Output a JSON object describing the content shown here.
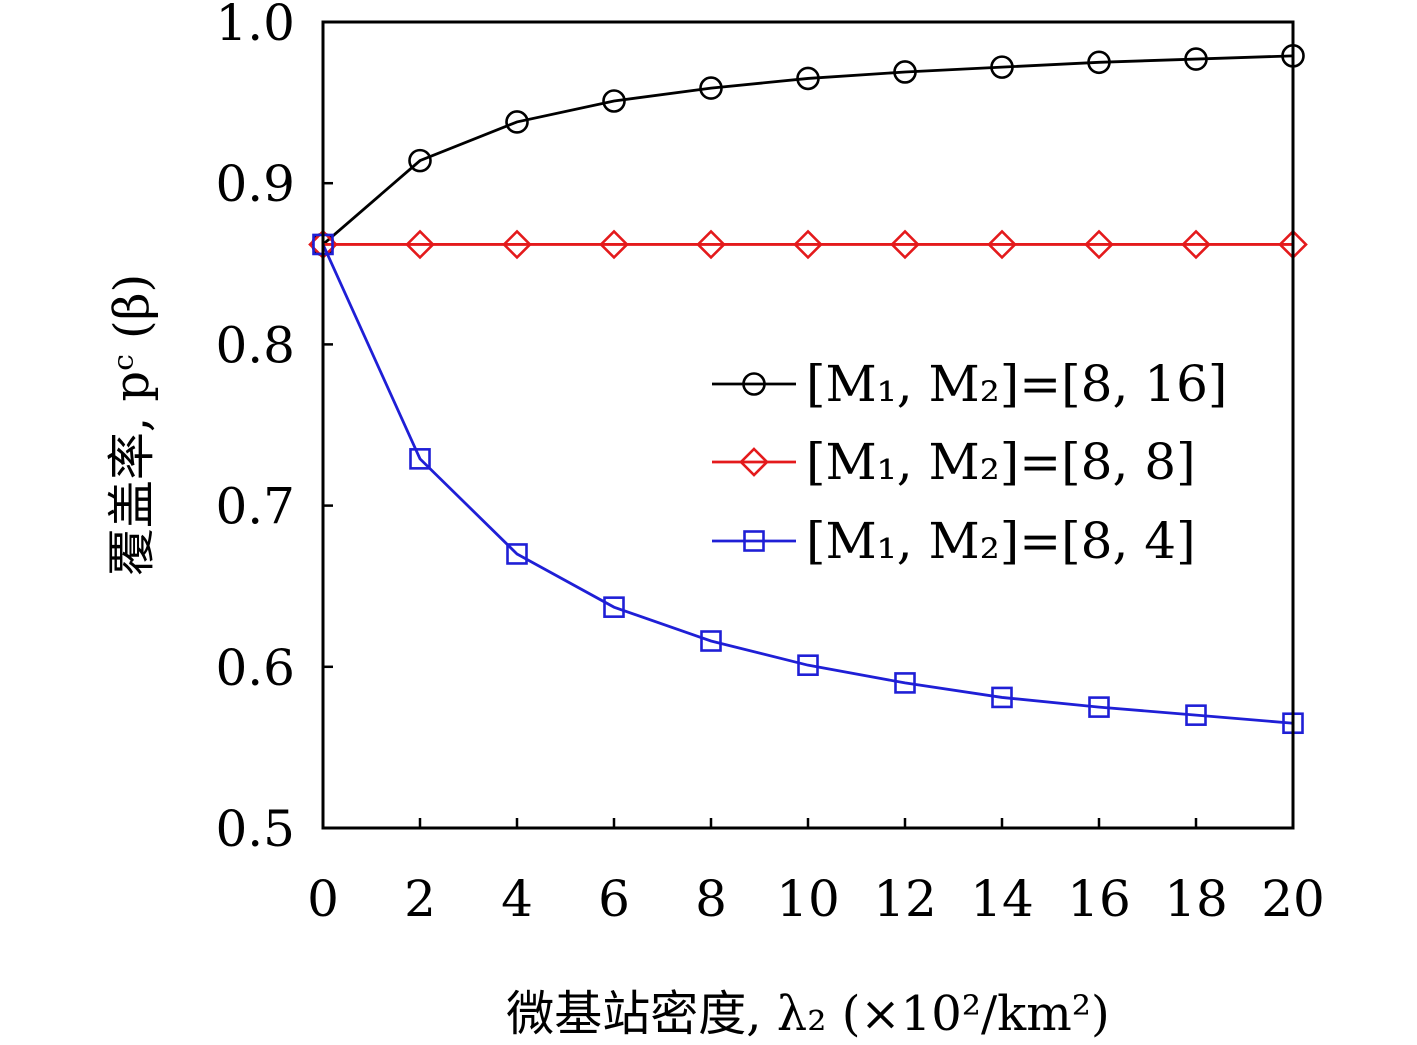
{
  "chart_data": {
    "type": "line",
    "title": "",
    "xlabel": "微基站密度, λ₂ (×10²/km²)",
    "ylabel": "覆盖率, pᶜ (β)",
    "xlim": [
      0,
      20
    ],
    "ylim": [
      0.5,
      1.0
    ],
    "x": [
      0,
      2,
      4,
      6,
      8,
      10,
      12,
      14,
      16,
      18,
      20
    ],
    "x_ticks": [
      "0",
      "2",
      "4",
      "6",
      "8",
      "10",
      "12",
      "14",
      "16",
      "18",
      "20"
    ],
    "y_ticks": [
      {
        "value": 0.5,
        "label": "0.5"
      },
      {
        "value": 0.6,
        "label": "0.6"
      },
      {
        "value": 0.7,
        "label": "0.7"
      },
      {
        "value": 0.8,
        "label": "0.8"
      },
      {
        "value": 0.9,
        "label": "0.9"
      },
      {
        "value": 1.0,
        "label": "1.0"
      }
    ],
    "grid": false,
    "legend_position": "right",
    "series": [
      {
        "name": "[M₁, M₂]=[8, 16]",
        "color": "#000000",
        "marker": "circle",
        "values": [
          0.862,
          0.914,
          0.938,
          0.951,
          0.959,
          0.965,
          0.969,
          0.972,
          0.975,
          0.977,
          0.979
        ]
      },
      {
        "name": "[M₁, M₂]=[8, 8]",
        "color": "#e41a1c",
        "marker": "diamond",
        "values": [
          0.862,
          0.862,
          0.862,
          0.862,
          0.862,
          0.862,
          0.862,
          0.862,
          0.862,
          0.862,
          0.862
        ]
      },
      {
        "name": "[M₁, M₂]=[8, 4]",
        "color": "#1f1fd6",
        "marker": "square",
        "values": [
          0.862,
          0.729,
          0.67,
          0.637,
          0.616,
          0.601,
          0.59,
          0.581,
          0.575,
          0.57,
          0.565
        ]
      }
    ]
  }
}
